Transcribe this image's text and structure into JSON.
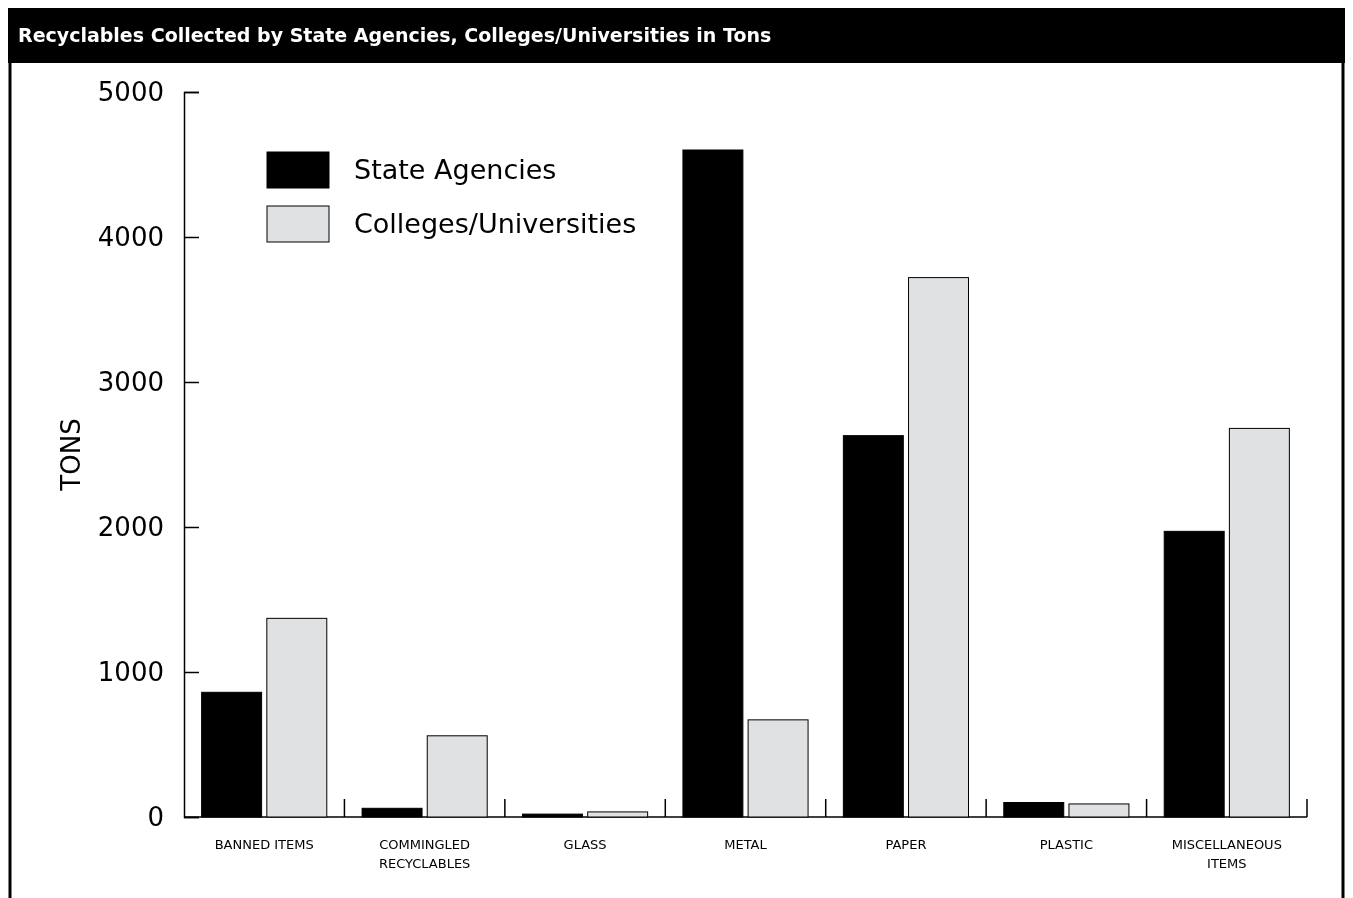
{
  "chart_data": {
    "type": "bar",
    "title": "Recyclables Collected by State Agencies, Colleges/Universities in Tons",
    "ylabel": "TONS",
    "categories": [
      "BANNED ITEMS",
      "COMMINGLED RECYCLABLES",
      "GLASS",
      "METAL",
      "PAPER",
      "PLASTIC",
      "MISCELLANEOUS ITEMS"
    ],
    "series": [
      {
        "name": "State Agencies",
        "color": "#000000",
        "values": [
          860,
          60,
          20,
          4600,
          2630,
          100,
          1970
        ]
      },
      {
        "name": "Colleges/Universities",
        "color": "#e0e1e3",
        "values": [
          1370,
          560,
          35,
          670,
          3720,
          90,
          2680
        ]
      }
    ],
    "ylim": [
      0,
      5000
    ],
    "yticks": [
      0,
      1000,
      2000,
      3000,
      4000,
      5000
    ],
    "grid": false,
    "legend": "top left"
  }
}
